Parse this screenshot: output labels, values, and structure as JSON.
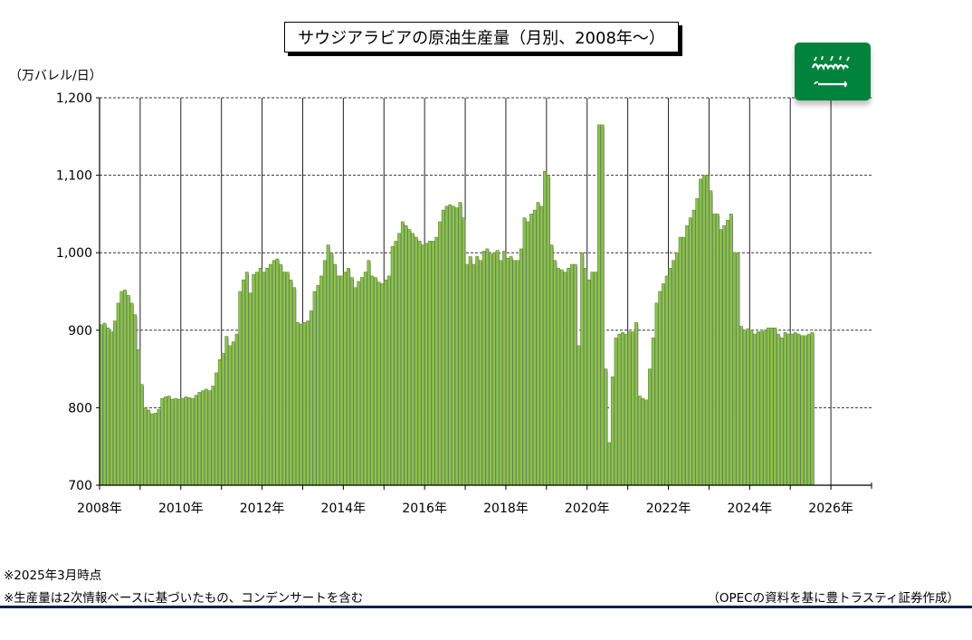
{
  "chart_data": {
    "type": "bar",
    "title": "サウジアラビアの原油生産量（月別、2008年～）",
    "ylabel": "（万バレル/日）",
    "ylim": [
      700,
      1200
    ],
    "xlim": [
      "2008-01",
      "2026-12"
    ],
    "yticks": [
      "1,200",
      "1,100",
      "1,000",
      "900",
      "800",
      "700"
    ],
    "ytick_values": [
      1200,
      1100,
      1000,
      900,
      800,
      700
    ],
    "xticks": [
      "2008年",
      "2010年",
      "2012年",
      "2014年",
      "2016年",
      "2018年",
      "2020年",
      "2022年",
      "2024年",
      "2026年"
    ],
    "xtick_years": [
      2008,
      2010,
      2012,
      2014,
      2016,
      2018,
      2020,
      2022,
      2024,
      2026
    ],
    "grid": "horizontal dashed, vertical solid at each year",
    "bar_color": "#8cc152",
    "start": "2008-01",
    "series": [
      {
        "values": [
          907,
          909,
          903,
          898,
          912,
          935,
          950,
          952,
          945,
          935,
          920,
          875,
          830,
          800,
          797,
          792,
          793,
          798,
          812,
          814,
          815,
          811,
          812,
          811,
          812,
          814,
          813,
          812,
          816,
          820,
          822,
          824,
          822,
          828,
          845,
          862,
          870,
          892,
          880,
          885,
          895,
          950,
          965,
          975,
          948,
          972,
          975,
          980,
          975,
          980,
          985,
          990,
          992,
          985,
          975,
          975,
          965,
          955,
          910,
          908,
          910,
          912,
          925,
          950,
          958,
          970,
          990,
          1010,
          1000,
          985,
          970,
          970,
          975,
          980,
          968,
          955,
          963,
          968,
          975,
          990,
          970,
          968,
          962,
          960,
          965,
          970,
          1008,
          1015,
          1025,
          1040,
          1035,
          1030,
          1025,
          1020,
          1015,
          1010,
          1012,
          1015,
          1015,
          1020,
          1040,
          1055,
          1060,
          1062,
          1060,
          1058,
          1065,
          1045,
          985,
          995,
          985,
          995,
          990,
          1002,
          1005,
          998,
          1000,
          1003,
          990,
          1002,
          993,
          995,
          990,
          990,
          1005,
          1045,
          1040,
          1050,
          1055,
          1065,
          1060,
          1105,
          1100,
          1010,
          990,
          980,
          978,
          975,
          980,
          985,
          985,
          880,
          1000,
          980,
          965,
          975,
          975,
          1165,
          1165,
          850,
          755,
          840,
          890,
          895,
          897,
          895,
          898,
          898,
          910,
          815,
          812,
          810,
          850,
          890,
          935,
          950,
          960,
          970,
          980,
          990,
          1000,
          1020,
          1020,
          1035,
          1045,
          1055,
          1070,
          1095,
          1100,
          1100,
          1080,
          1050,
          1050,
          1030,
          1035,
          1042,
          1050,
          1000,
          1000,
          905,
          900,
          902,
          900,
          895,
          898,
          898,
          900,
          903,
          903,
          903,
          895,
          890,
          897,
          895,
          895,
          897,
          895,
          893,
          893,
          895,
          897
        ]
      }
    ]
  },
  "flag": {
    "name": "saudi-flag",
    "color": "#00833c"
  },
  "notes": {
    "note1": "※2025年3月時点",
    "note2": "※生産量は2次情報ベースに基づいたもの、コンデンサートを含む",
    "source": "（OPECの資料を基に豊トラスティ証券作成）"
  }
}
